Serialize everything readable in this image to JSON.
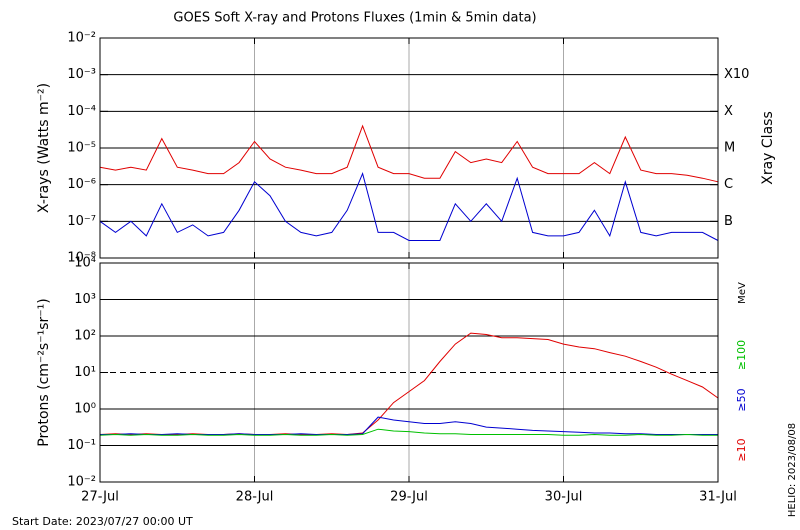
{
  "chart_data": [
    {
      "type": "line",
      "title": "GOES Soft X-ray and Protons Fluxes   (1min & 5min data)",
      "ylabel": "X-rays (Watts m⁻²)",
      "y2label": "Xray Class",
      "log_y": true,
      "xlim": [
        0,
        4
      ],
      "xticks": [
        0,
        1,
        2,
        3,
        4
      ],
      "ylim": [
        1e-08,
        0.01
      ],
      "yticks": [
        {
          "value": 1e-08,
          "label": "10⁻⁸"
        },
        {
          "value": 1e-07,
          "label": "10⁻⁷"
        },
        {
          "value": 1e-06,
          "label": "10⁻⁶"
        },
        {
          "value": 1e-05,
          "label": "10⁻⁵"
        },
        {
          "value": 0.0001,
          "label": "10⁻⁴"
        },
        {
          "value": 0.001,
          "label": "10⁻³"
        },
        {
          "value": 0.01,
          "label": "10⁻²"
        }
      ],
      "y2ticks": [
        {
          "value": 1e-07,
          "label": "B"
        },
        {
          "value": 1e-06,
          "label": "C"
        },
        {
          "value": 1e-05,
          "label": "M"
        },
        {
          "value": 0.0001,
          "label": "X"
        },
        {
          "value": 0.001,
          "label": "X10"
        }
      ],
      "x": [
        0,
        0.1,
        0.2,
        0.3,
        0.4,
        0.5,
        0.6,
        0.7,
        0.8,
        0.9,
        1,
        1.1,
        1.2,
        1.3,
        1.4,
        1.5,
        1.6,
        1.7,
        1.8,
        1.9,
        2,
        2.1,
        2.2,
        2.3,
        2.4,
        2.5,
        2.6,
        2.7,
        2.8,
        2.9,
        3,
        3.1,
        3.2,
        3.3,
        3.4,
        3.5,
        3.6,
        3.7,
        3.8,
        3.9,
        4
      ],
      "series": [
        {
          "color": "#e00000",
          "values": [
            3e-06,
            2.5e-06,
            3e-06,
            2.5e-06,
            1.8e-05,
            3e-06,
            2.5e-06,
            2e-06,
            2e-06,
            4e-06,
            1.5e-05,
            5e-06,
            3e-06,
            2.5e-06,
            2e-06,
            2e-06,
            3e-06,
            4e-05,
            3e-06,
            2e-06,
            2e-06,
            1.5e-06,
            1.5e-06,
            8e-06,
            4e-06,
            5e-06,
            4e-06,
            1.5e-05,
            3e-06,
            2e-06,
            2e-06,
            2e-06,
            4e-06,
            2e-06,
            2e-05,
            2.5e-06,
            2e-06,
            2e-06,
            1.8e-06,
            1.5e-06,
            1.2e-06
          ]
        },
        {
          "color": "#0000d0",
          "values": [
            1e-07,
            5e-08,
            1e-07,
            4e-08,
            3e-07,
            5e-08,
            8e-08,
            4e-08,
            5e-08,
            2e-07,
            1.2e-06,
            5e-07,
            1e-07,
            5e-08,
            4e-08,
            5e-08,
            2e-07,
            2e-06,
            5e-08,
            5e-08,
            3e-08,
            3e-08,
            3e-08,
            3e-07,
            1e-07,
            3e-07,
            1e-07,
            1.5e-06,
            5e-08,
            4e-08,
            4e-08,
            5e-08,
            2e-07,
            4e-08,
            1.2e-06,
            5e-08,
            4e-08,
            5e-08,
            5e-08,
            5e-08,
            3e-08
          ]
        }
      ]
    },
    {
      "type": "line",
      "ylabel": "Protons (cm⁻²s⁻¹sr⁻¹)",
      "y2label": "MeV",
      "log_y": true,
      "xlim": [
        0,
        4
      ],
      "xticks": [
        {
          "value": 0,
          "label": "27-Jul"
        },
        {
          "value": 1,
          "label": "28-Jul"
        },
        {
          "value": 2,
          "label": "29-Jul"
        },
        {
          "value": 3,
          "label": "30-Jul"
        },
        {
          "value": 4,
          "label": "31-Jul"
        }
      ],
      "ylim": [
        0.01,
        10000.0
      ],
      "yticks": [
        {
          "value": 0.01,
          "label": "10⁻²"
        },
        {
          "value": 0.1,
          "label": "10⁻¹"
        },
        {
          "value": 1,
          "label": "10⁰"
        },
        {
          "value": 10,
          "label": "10¹"
        },
        {
          "value": 100,
          "label": "10²"
        },
        {
          "value": 1000,
          "label": "10³"
        },
        {
          "value": 10000,
          "label": "10⁴"
        }
      ],
      "threshold_line": 10,
      "x": [
        0,
        0.1,
        0.2,
        0.3,
        0.4,
        0.5,
        0.6,
        0.7,
        0.8,
        0.9,
        1,
        1.1,
        1.2,
        1.3,
        1.4,
        1.5,
        1.6,
        1.7,
        1.8,
        1.9,
        2,
        2.1,
        2.2,
        2.3,
        2.4,
        2.5,
        2.6,
        2.7,
        2.8,
        2.9,
        3,
        3.1,
        3.2,
        3.3,
        3.4,
        3.5,
        3.6,
        3.7,
        3.8,
        3.9,
        4
      ],
      "series": [
        {
          "name": "≥10",
          "color": "#e00000",
          "values": [
            0.2,
            0.21,
            0.2,
            0.21,
            0.2,
            0.2,
            0.21,
            0.2,
            0.2,
            0.21,
            0.2,
            0.2,
            0.21,
            0.2,
            0.2,
            0.21,
            0.2,
            0.22,
            0.5,
            1.5,
            3,
            6,
            20,
            60,
            120,
            110,
            90,
            90,
            85,
            80,
            60,
            50,
            45,
            35,
            28,
            20,
            14,
            9,
            6,
            4,
            2
          ]
        },
        {
          "name": "≥50",
          "color": "#0000d0",
          "values": [
            0.2,
            0.2,
            0.21,
            0.2,
            0.2,
            0.21,
            0.2,
            0.2,
            0.2,
            0.21,
            0.2,
            0.2,
            0.2,
            0.21,
            0.2,
            0.2,
            0.2,
            0.21,
            0.6,
            0.5,
            0.45,
            0.4,
            0.4,
            0.45,
            0.4,
            0.32,
            0.3,
            0.28,
            0.26,
            0.25,
            0.24,
            0.23,
            0.22,
            0.22,
            0.21,
            0.21,
            0.2,
            0.2,
            0.2,
            0.2,
            0.2
          ]
        },
        {
          "name": "≥100",
          "color": "#00c000",
          "values": [
            0.19,
            0.2,
            0.19,
            0.2,
            0.19,
            0.19,
            0.2,
            0.19,
            0.19,
            0.2,
            0.19,
            0.19,
            0.2,
            0.19,
            0.19,
            0.2,
            0.19,
            0.2,
            0.28,
            0.25,
            0.24,
            0.22,
            0.21,
            0.21,
            0.2,
            0.2,
            0.2,
            0.2,
            0.2,
            0.2,
            0.19,
            0.19,
            0.2,
            0.19,
            0.19,
            0.2,
            0.19,
            0.19,
            0.2,
            0.19,
            0.19
          ]
        }
      ]
    }
  ],
  "start_date": "Start Date: 2023/07/27 00:00 UT",
  "helio": "HELIO: 2023/08/08"
}
